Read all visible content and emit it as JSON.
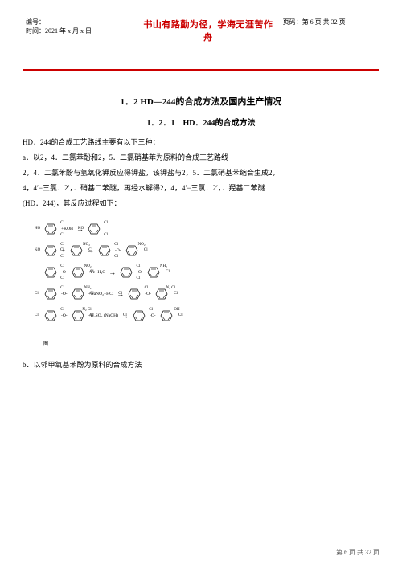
{
  "header": {
    "serial_label": "编号：",
    "date_label": "时间：2021 年 x 月 x 日",
    "motto": "书山有路勤为径，学海无涯苦作舟",
    "page_label": "页码：第 6 页 共 32 页",
    "red_line_color": "#cc0000"
  },
  "titles": {
    "section": "1．2 HD—244的合成方法及国内生产情况",
    "subsection": "1．2．1　HD．244的合成方法"
  },
  "paragraphs": {
    "p1": "HD．244的合成工艺路线主要有以下三种：",
    "p2": "a．以2，4．二氯苯酚和2，5．二氯硝基苯为原料的合成工艺路线",
    "p3": "2，4．二氯苯酚与氢氧化钾反应得钾盐，该钾盐与2，5．二氯硝基苯缩合生成2，",
    "p4": "4，4′−三氯．2′，．硝基二苯醚，再经水解得2，4，4′−三氯．2′，．羟基二苯醚",
    "p5": "(HD．244)，其反应过程如下：",
    "p6": "b．以邻甲氧基苯酚为原料的合成方法"
  },
  "diagram": {
    "rows": [
      {
        "items": [
          {
            "type": "benzene",
            "subs": {
              "l": "HO",
              "tr": "Cl",
              "br": "Cl"
            }
          },
          {
            "type": "reagent",
            "text": "+KOH"
          },
          {
            "type": "arrow"
          },
          {
            "type": "benzene",
            "subs": {
              "l": "KO",
              "tr": "Cl",
              "br": "Cl"
            }
          }
        ]
      },
      {
        "items": [
          {
            "type": "benzene",
            "subs": {
              "l": "KO",
              "tr": "Cl",
              "br": "Cl"
            }
          },
          {
            "type": "plus"
          },
          {
            "type": "benzene",
            "subs": {
              "l": "Cl",
              "tr": "NO₂",
              "r": "Cl"
            }
          },
          {
            "type": "arrow"
          },
          {
            "type": "benzene",
            "subs": {
              "tr": "Cl",
              "br": "Cl"
            }
          },
          {
            "type": "reagent",
            "text": "-O-"
          },
          {
            "type": "benzene",
            "subs": {
              "tr": "NO₂",
              "r": "Cl"
            }
          }
        ]
      },
      {
        "items": [
          {
            "type": "benzene",
            "subs": {
              "tr": "Cl",
              "br": "Cl"
            }
          },
          {
            "type": "reagent",
            "text": "-O-"
          },
          {
            "type": "benzene",
            "subs": {
              "tr": "NO₂",
              "r": "Cl"
            }
          },
          {
            "type": "reagent",
            "text": "+Fe+H₂O"
          },
          {
            "type": "arrow"
          },
          {
            "type": "benzene",
            "subs": {
              "tr": "Cl",
              "br": "Cl"
            }
          },
          {
            "type": "reagent",
            "text": "-O-"
          },
          {
            "type": "benzene",
            "subs": {
              "tr": "NH₂",
              "r": "Cl"
            }
          }
        ]
      },
      {
        "items": [
          {
            "type": "benzene",
            "subs": {
              "l": "Cl",
              "tr": "Cl"
            }
          },
          {
            "type": "reagent",
            "text": "-O-"
          },
          {
            "type": "benzene",
            "subs": {
              "tr": "NH₂",
              "r": "Cl"
            }
          },
          {
            "type": "reagent",
            "text": "+NaNO₂+HCl"
          },
          {
            "type": "arrow"
          },
          {
            "type": "benzene",
            "subs": {
              "l": "Cl",
              "tr": "Cl"
            }
          },
          {
            "type": "reagent",
            "text": "-O-"
          },
          {
            "type": "benzene",
            "subs": {
              "tr": "N₂ Cl",
              "r": "Cl"
            }
          }
        ]
      },
      {
        "items": [
          {
            "type": "benzene",
            "subs": {
              "l": "Cl",
              "tr": "Cl"
            }
          },
          {
            "type": "reagent",
            "text": "-O-"
          },
          {
            "type": "benzene",
            "subs": {
              "tr": "N₂ Cl",
              "r": "Cl"
            }
          },
          {
            "type": "reagent",
            "text": "+H₂SO₄ (NaOH)"
          },
          {
            "type": "arrow"
          },
          {
            "type": "benzene",
            "subs": {
              "l": "Cl",
              "tr": "Cl"
            }
          },
          {
            "type": "reagent",
            "text": "-O-"
          },
          {
            "type": "benzene",
            "subs": {
              "tr": "OH",
              "r": "Cl"
            }
          }
        ]
      }
    ],
    "footer": "图"
  },
  "footer": {
    "text": "第 6 页 共 32 页"
  }
}
